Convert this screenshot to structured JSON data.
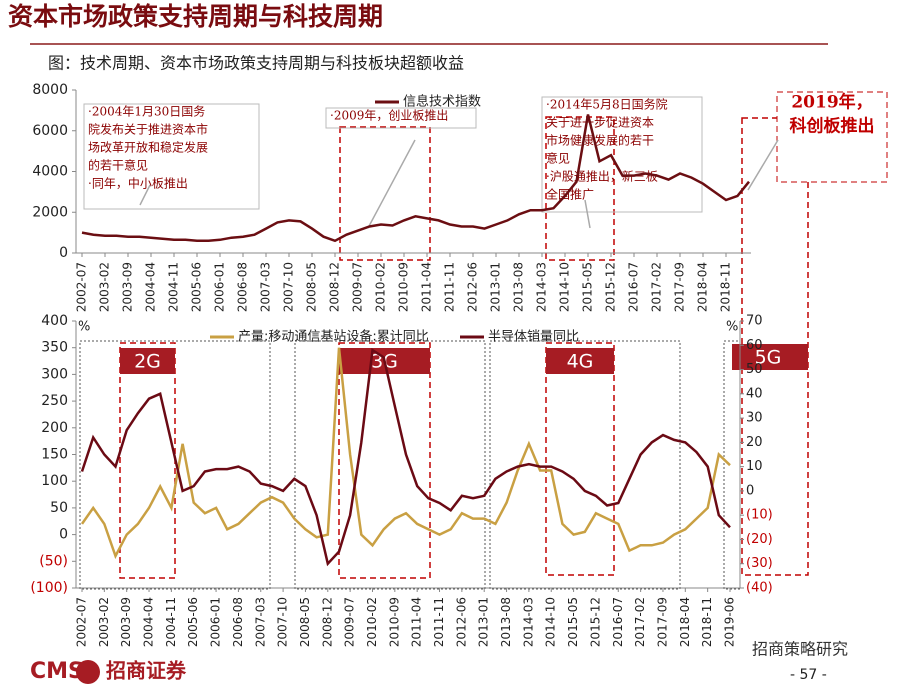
{
  "title": "资本市场政策支持周期与科技周期",
  "subtitle": "图：技术周期、资本市场政策支持周期与科技板块超额收益",
  "annotations": [
    {
      "lines": [
        "·2004年1月30日国务",
        "院发布关于推进资本市",
        "场改革开放和稳定发展",
        "的若干意见",
        "·同年，中小板推出"
      ]
    },
    {
      "lines": [
        "·2009年，创业板推出"
      ]
    },
    {
      "lines": [
        "·2014年5月8日国务院",
        "关于进一步促进资本",
        "市场健康发展的若干",
        "意见",
        "·沪股通推出，新三板",
        "全国推广"
      ]
    },
    {
      "lines": [
        "2019年，",
        "科创板推出"
      ]
    }
  ],
  "bands": [
    "2G",
    "3G",
    "4G",
    "5G"
  ],
  "footer": {
    "logo": "CMS",
    "company": "招商证券",
    "wechat": "招商策略研究",
    "page": "- 57 -"
  },
  "chart_data": [
    {
      "type": "line",
      "categories": [
        "2002-07",
        null,
        "2003-02",
        null,
        "2003-09",
        null,
        "2004-04",
        null,
        "2004-11",
        null,
        "2005-06",
        null,
        "2006-01",
        null,
        "2006-08",
        null,
        "2007-03",
        null,
        "2007-10",
        null,
        "2008-05",
        null,
        "2008-12",
        null,
        "2009-07",
        null,
        "2010-02",
        null,
        "2010-09",
        null,
        "2011-04",
        null,
        "2011-11",
        null,
        "2012-06",
        null,
        "2013-01",
        null,
        "2013-08",
        null,
        "2014-03",
        null,
        "2014-10",
        null,
        "2015-05",
        null,
        "2015-12",
        null,
        "2016-07",
        null,
        "2017-02",
        null,
        "2017-09",
        null,
        "2018-04",
        null,
        "2018-11",
        null,
        null
      ],
      "series": [
        {
          "name": "信息技术指数",
          "color": "#6b0e12",
          "values": [
            1000,
            900,
            850,
            850,
            800,
            800,
            750,
            700,
            650,
            650,
            600,
            600,
            650,
            750,
            800,
            900,
            1200,
            1500,
            1600,
            1550,
            1200,
            800,
            600,
            900,
            1100,
            1300,
            1400,
            1350,
            1600,
            1800,
            1700,
            1600,
            1400,
            1300,
            1300,
            1200,
            1400,
            1600,
            1900,
            2100,
            2100,
            2200,
            2800,
            3500,
            6800,
            4500,
            4800,
            3800,
            3800,
            3900,
            3800,
            3600,
            3900,
            3700,
            3400,
            3000,
            2600,
            2800,
            3500
          ]
        }
      ],
      "ylim": [
        0,
        8000
      ],
      "yticks": [
        0,
        2000,
        4000,
        6000,
        8000
      ],
      "grid": false,
      "legend": "top"
    },
    {
      "type": "line",
      "categories": [
        "2002-07",
        null,
        "2003-02",
        null,
        "2003-09",
        null,
        "2004-04",
        null,
        "2004-11",
        null,
        "2005-06",
        null,
        "2006-01",
        null,
        "2006-08",
        null,
        "2007-03",
        null,
        "2007-10",
        null,
        "2008-05",
        null,
        "2008-12",
        null,
        "2009-07",
        null,
        "2010-02",
        null,
        "2010-09",
        null,
        "2011-04",
        null,
        "2011-11",
        null,
        "2012-06",
        null,
        "2013-01",
        null,
        "2013-08",
        null,
        "2014-03",
        null,
        "2014-10",
        null,
        "2015-05",
        null,
        "2015-12",
        null,
        "2016-07",
        null,
        "2017-02",
        null,
        "2017-09",
        null,
        "2018-04",
        null,
        "2018-11",
        null,
        "2019-06"
      ],
      "y_label": "%",
      "y2_label": "%",
      "series": [
        {
          "name": "产量:移动通信基站设备:累计同比",
          "color": "#c9a043",
          "values": [
            20,
            50,
            20,
            -40,
            0,
            20,
            50,
            90,
            50,
            170,
            60,
            40,
            50,
            10,
            20,
            40,
            60,
            70,
            60,
            30,
            10,
            -5,
            0,
            350,
            150,
            0,
            -20,
            10,
            30,
            40,
            20,
            10,
            0,
            10,
            40,
            30,
            30,
            20,
            60,
            120,
            170,
            120,
            120,
            20,
            0,
            5,
            40,
            30,
            20,
            -30,
            -20,
            -20,
            -15,
            0,
            10,
            30,
            50,
            150,
            130
          ]
        },
        {
          "name": "半导体销量同比",
          "color": "#6b0a14",
          "axis": "y2",
          "values": [
            8,
            22,
            15,
            10,
            25,
            32,
            38,
            40,
            20,
            0,
            2,
            8,
            9,
            9,
            10,
            8,
            3,
            2,
            0,
            5,
            2,
            -10,
            -30,
            -25,
            -10,
            20,
            58,
            55,
            35,
            15,
            2,
            -3,
            -5,
            -8,
            -2,
            -3,
            -2,
            5,
            8,
            10,
            11,
            10,
            10,
            8,
            5,
            0,
            -2,
            -6,
            -5,
            5,
            15,
            20,
            23,
            21,
            20,
            16,
            10,
            -10,
            -15
          ]
        }
      ],
      "ylim": [
        -100,
        400
      ],
      "yticks": [
        {
          "value": -100,
          "label": "(100)"
        },
        {
          "value": -50,
          "label": "(50)"
        },
        0,
        50,
        100,
        150,
        200,
        250,
        300,
        350,
        400
      ],
      "y2lim": [
        -40,
        70
      ],
      "y2ticks": [
        {
          "value": -40,
          "label": "(40)"
        },
        {
          "value": -30,
          "label": "(30)"
        },
        {
          "value": -20,
          "label": "(20)"
        },
        {
          "value": -10,
          "label": "(10)"
        },
        0,
        10,
        20,
        30,
        40,
        50,
        60,
        70
      ],
      "grid": false,
      "legend": "top"
    }
  ]
}
